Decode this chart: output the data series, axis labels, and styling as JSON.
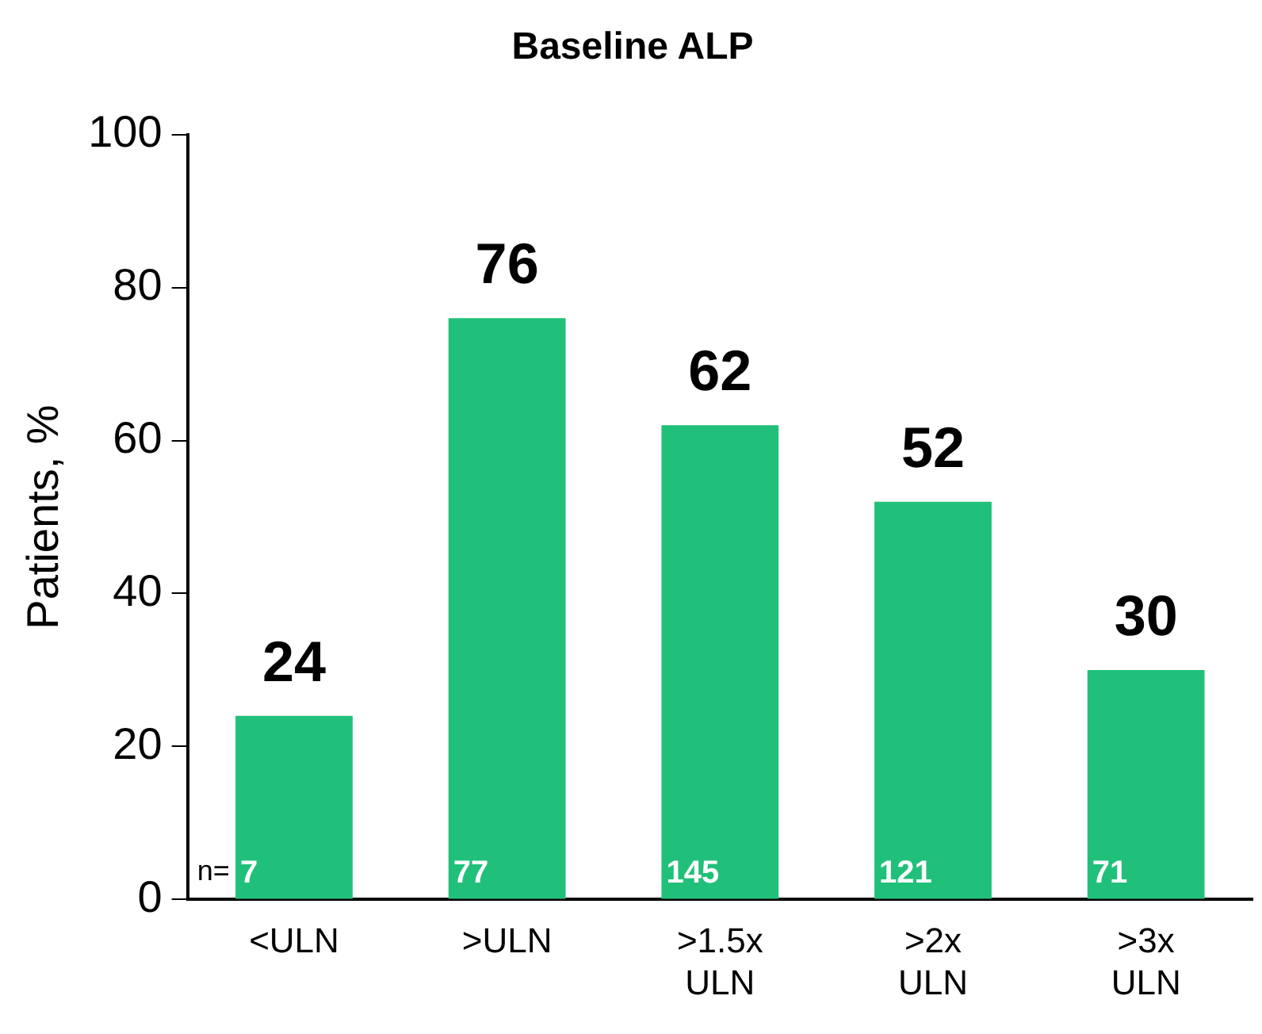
{
  "chart_data": {
    "type": "bar",
    "title": "Baseline ALP",
    "ylabel": "Patients, %",
    "categories": [
      "<ULN",
      ">ULN",
      ">1.5x ULN",
      ">2x ULN",
      ">3x ULN"
    ],
    "values": [
      24,
      76,
      62,
      52,
      30
    ],
    "color": "#21c07a",
    "ylim": [
      0,
      100
    ],
    "yticks": [
      0,
      20,
      40,
      60,
      80,
      100
    ],
    "grid": false,
    "legend": false,
    "data_labels": true,
    "annotations": [
      "n=",
      "7",
      "77",
      "145",
      "121",
      "71"
    ]
  }
}
